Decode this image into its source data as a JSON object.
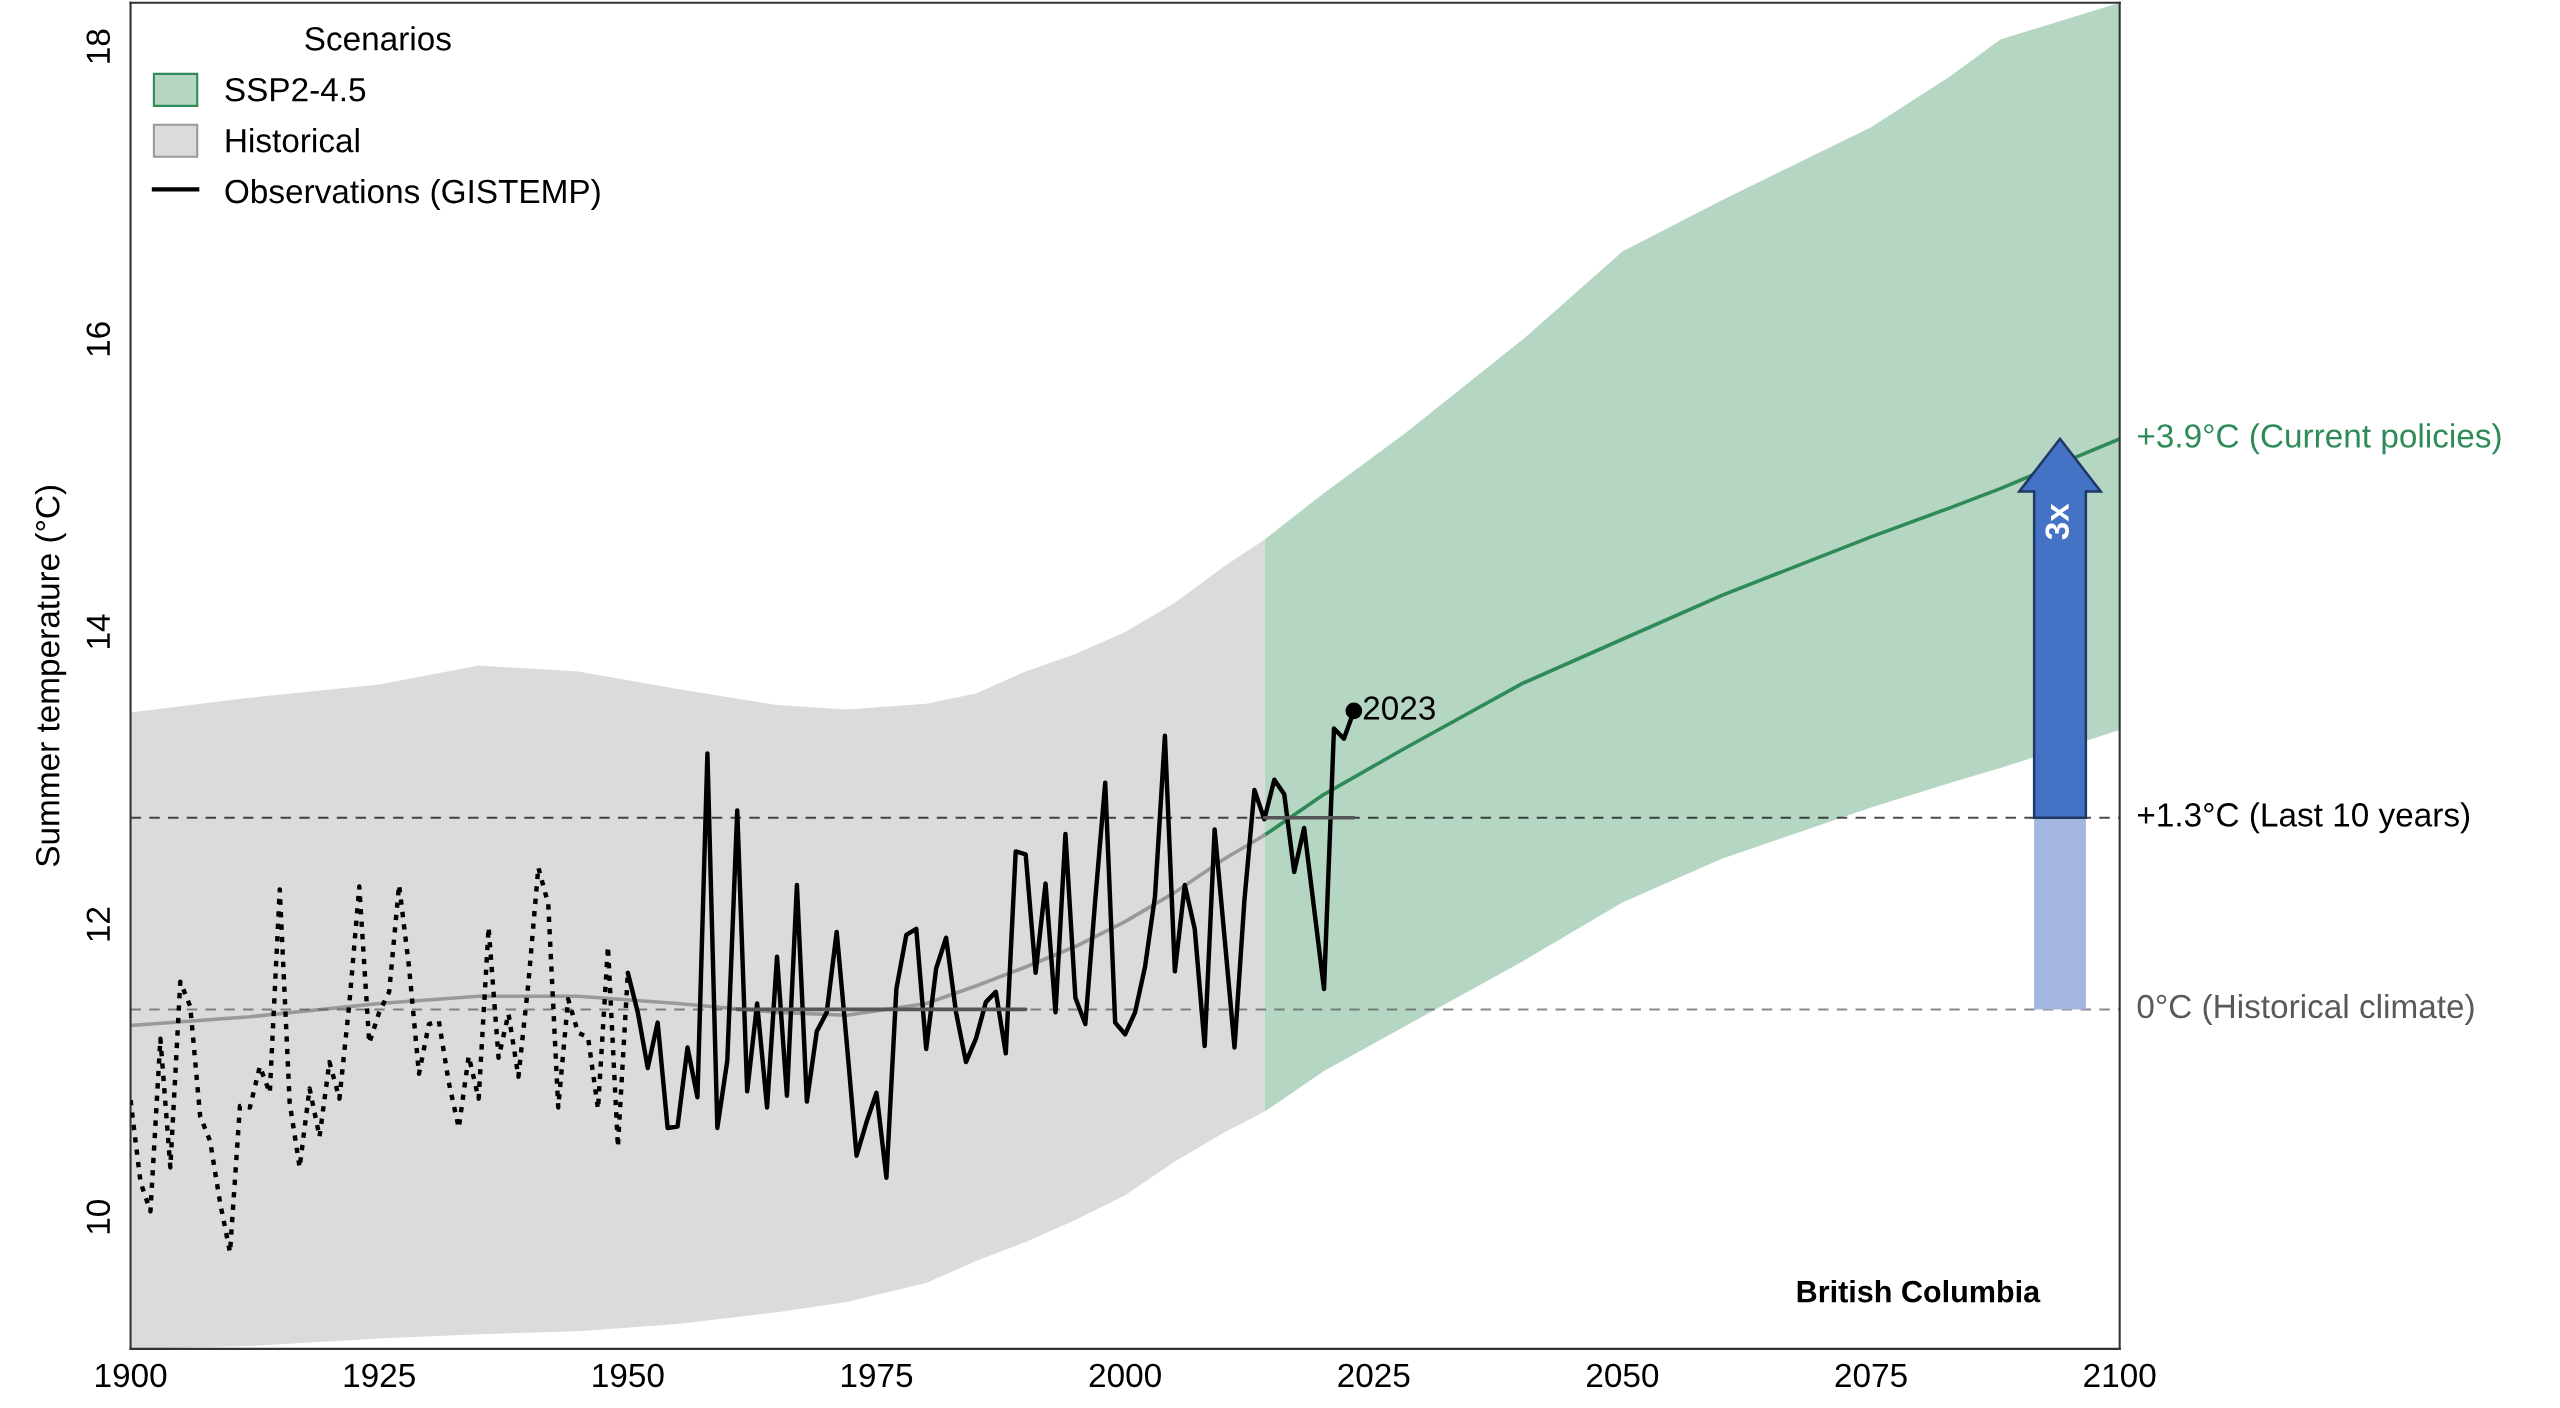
{
  "chart_data": {
    "type": "line",
    "ylabel": "Summer temperature (°C)",
    "legend_title": "Scenarios",
    "legend": "top left",
    "grid": false,
    "xlim": [
      1900,
      2100
    ],
    "xticks": [
      1900,
      1925,
      1950,
      1975,
      2000,
      2025,
      2050,
      2075,
      2100
    ],
    "ylim": [
      9.1,
      18.3
    ],
    "yticks": [
      10,
      12,
      14,
      16,
      18
    ],
    "series": [
      {
        "name": "SSP2-4.5",
        "color": "#2e8b57",
        "x": [
          2014,
          2020,
          2028,
          2040,
          2050,
          2060,
          2075,
          2083,
          2088,
          2100
        ],
        "values": [
          12.61,
          12.89,
          13.2,
          13.65,
          13.95,
          14.25,
          14.65,
          14.85,
          14.98,
          15.32
        ],
        "lower": [
          10.72,
          11.0,
          11.3,
          11.75,
          12.15,
          12.45,
          12.8,
          12.97,
          13.07,
          13.33
        ],
        "upper": [
          14.63,
          14.95,
          15.35,
          16.0,
          16.6,
          16.95,
          17.45,
          17.8,
          18.05,
          18.3
        ]
      },
      {
        "name": "Historical",
        "color": "#999999",
        "x": [
          1900,
          1912,
          1925,
          1935,
          1945,
          1955,
          1965,
          1972,
          1980,
          1985,
          1990,
          1995,
          2000,
          2005,
          2010,
          2014
        ],
        "values": [
          11.31,
          11.37,
          11.46,
          11.51,
          11.51,
          11.46,
          11.4,
          11.38,
          11.46,
          11.58,
          11.71,
          11.85,
          12.02,
          12.22,
          12.45,
          12.61
        ],
        "lower": [
          9.1,
          9.12,
          9.17,
          9.2,
          9.22,
          9.27,
          9.35,
          9.42,
          9.55,
          9.7,
          9.83,
          9.98,
          10.15,
          10.38,
          10.58,
          10.72
        ],
        "upper": [
          13.45,
          13.55,
          13.64,
          13.77,
          13.73,
          13.61,
          13.5,
          13.47,
          13.51,
          13.58,
          13.73,
          13.85,
          14.0,
          14.2,
          14.45,
          14.63
        ]
      },
      {
        "name": "Observations (GISTEMP)",
        "color": "#000000",
        "line_style": "solid",
        "x": [
          1950,
          1951,
          1952,
          1953,
          1954,
          1955,
          1956,
          1957,
          1958,
          1959,
          1960,
          1961,
          1962,
          1963,
          1964,
          1965,
          1966,
          1967,
          1968,
          1969,
          1970,
          1971,
          1972,
          1973,
          1974,
          1975,
          1976,
          1977,
          1978,
          1979,
          1980,
          1981,
          1982,
          1983,
          1984,
          1985,
          1986,
          1987,
          1988,
          1989,
          1990,
          1991,
          1992,
          1993,
          1994,
          1995,
          1996,
          1997,
          1998,
          1999,
          2000,
          2001,
          2002,
          2003,
          2004,
          2005,
          2006,
          2007,
          2008,
          2009,
          2010,
          2011,
          2012,
          2013,
          2014,
          2015,
          2016,
          2017,
          2018,
          2019,
          2020,
          2021,
          2022,
          2023
        ],
        "values": [
          11.67,
          11.4,
          11.02,
          11.33,
          10.61,
          10.62,
          11.16,
          10.82,
          13.17,
          10.61,
          11.07,
          12.78,
          10.86,
          11.46,
          10.75,
          11.78,
          10.83,
          12.27,
          10.79,
          11.27,
          11.4,
          11.95,
          11.2,
          10.42,
          10.65,
          10.85,
          10.27,
          11.56,
          11.93,
          11.97,
          11.15,
          11.7,
          11.91,
          11.4,
          11.06,
          11.22,
          11.47,
          11.54,
          11.12,
          12.5,
          12.48,
          11.67,
          12.28,
          11.4,
          12.62,
          11.5,
          11.32,
          12.17,
          12.97,
          11.33,
          11.25,
          11.4,
          11.71,
          12.19,
          13.29,
          11.68,
          12.27,
          11.97,
          11.17,
          12.65,
          11.91,
          11.16,
          12.17,
          12.92,
          12.72,
          12.99,
          12.89,
          12.36,
          12.66,
          12.11,
          11.56,
          13.34,
          13.27,
          13.46
        ]
      },
      {
        "color": "#000000",
        "line_style": "dotted",
        "x": [
          1900,
          1901,
          1902,
          1903,
          1904,
          1905,
          1906,
          1907,
          1908,
          1909,
          1910,
          1911,
          1912,
          1913,
          1914,
          1915,
          1916,
          1917,
          1918,
          1919,
          1920,
          1921,
          1922,
          1923,
          1924,
          1925,
          1926,
          1927,
          1928,
          1929,
          1930,
          1931,
          1932,
          1933,
          1934,
          1935,
          1936,
          1937,
          1938,
          1939,
          1940,
          1941,
          1942,
          1943,
          1944,
          1945,
          1946,
          1947,
          1948,
          1949,
          1950
        ],
        "values": [
          10.8,
          10.24,
          10.04,
          11.22,
          10.34,
          11.61,
          11.44,
          10.69,
          10.52,
          10.1,
          9.76,
          10.76,
          10.75,
          11.03,
          10.85,
          12.24,
          10.78,
          10.34,
          10.88,
          10.55,
          11.06,
          10.81,
          11.46,
          12.26,
          11.19,
          11.4,
          11.54,
          12.27,
          11.71,
          10.98,
          11.32,
          11.34,
          10.92,
          10.61,
          11.1,
          10.81,
          11.98,
          11.09,
          11.39,
          10.96,
          11.6,
          12.39,
          12.14,
          10.75,
          11.49,
          11.26,
          11.23,
          10.74,
          11.85,
          10.48,
          11.67
        ]
      },
      {
        "color": "#555555",
        "line_style": "solid",
        "x": [
          1961,
          1990
        ],
        "values": [
          11.42,
          11.42
        ]
      },
      {
        "color": "#555555",
        "line_style": "solid",
        "x": [
          2014,
          2023
        ],
        "values": [
          12.73,
          12.73
        ]
      }
    ],
    "ref_lines": [
      {
        "axis": "y",
        "value": 11.42,
        "label": "0°C (Historical climate)",
        "color": "#595959",
        "line_style": "dashed"
      },
      {
        "axis": "y",
        "value": 12.73,
        "label": "+1.3°C (Last 10 years)",
        "color": "#000000",
        "line_style": "dashed"
      }
    ],
    "annotations": [
      {
        "text": "2023",
        "x": 2023,
        "y": 13.46
      },
      {
        "text": "+3.9°C (Current policies)",
        "x": 2100,
        "y": 15.32
      },
      "3x",
      "British Columbia"
    ]
  }
}
